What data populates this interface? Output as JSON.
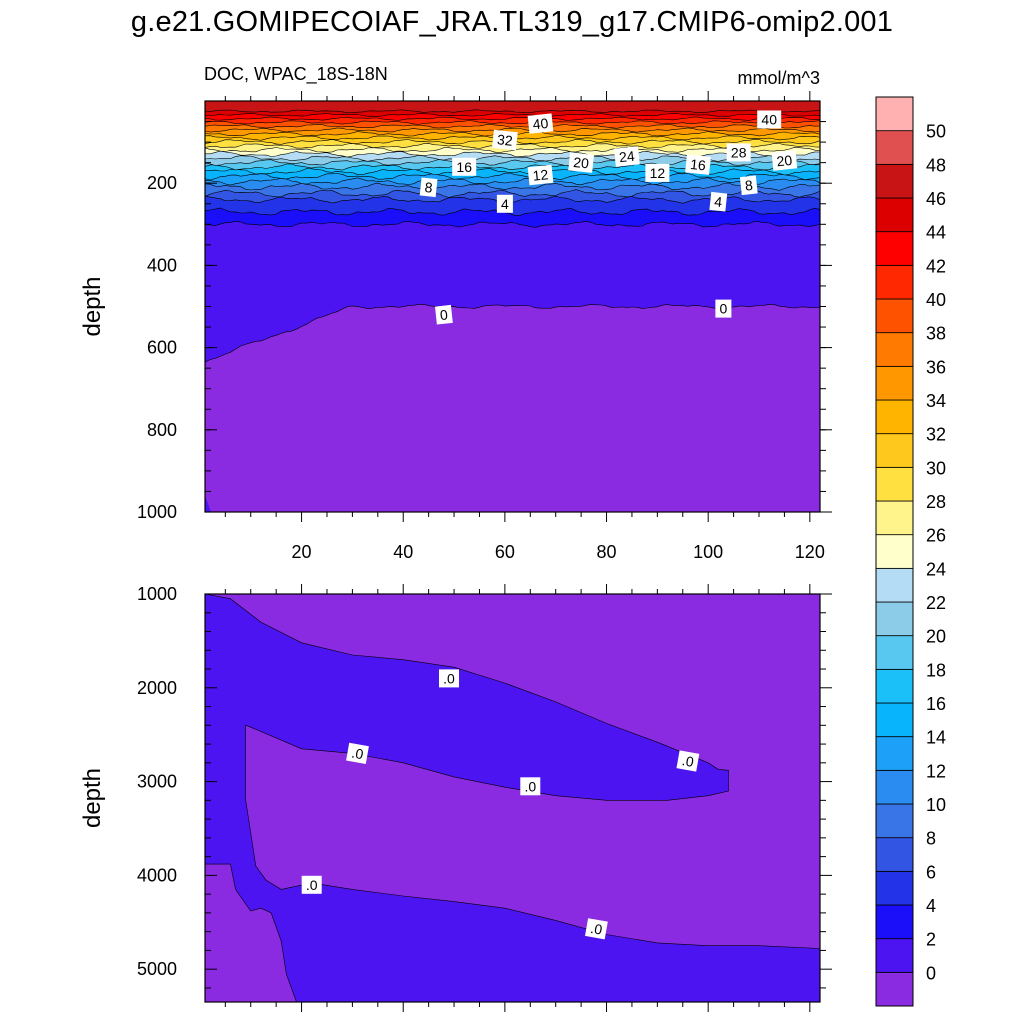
{
  "chart_data": {
    "type": "contour",
    "title": "g.e21.GOMIPECOIAF_JRA.TL319_g17.CMIP6-omip2.001",
    "variable": "DOC, WPAC_18S-18N",
    "units": "mmol/m^3",
    "colorbar": {
      "levels": [
        0,
        2,
        4,
        6,
        8,
        10,
        12,
        14,
        16,
        18,
        20,
        22,
        24,
        26,
        28,
        30,
        32,
        34,
        36,
        38,
        40,
        42,
        44,
        46,
        48,
        50
      ],
      "colors": [
        "#8a2be2",
        "#4b14f0",
        "#1a0ff8",
        "#2233e8",
        "#3355e4",
        "#3a75e8",
        "#2a8cf0",
        "#1ca0f8",
        "#08b4fc",
        "#1cc0f8",
        "#58c8f0",
        "#8ccce8",
        "#b4dcf4",
        "#ffffcc",
        "#fff48c",
        "#ffe040",
        "#ffc81c",
        "#ffb400",
        "#ff9800",
        "#ff7a00",
        "#ff5200",
        "#ff2800",
        "#ff0000",
        "#dc0000",
        "#c81414",
        "#e05050",
        "#ffb0b0"
      ]
    },
    "panels": [
      {
        "name": "upper",
        "xlim": [
          1,
          122
        ],
        "ylim": [
          0,
          1000
        ],
        "x_ticks": [
          20,
          40,
          60,
          80,
          100,
          120
        ],
        "y_ticks": [
          200,
          400,
          600,
          800,
          1000
        ],
        "ylabel": "depth",
        "contour_labels": [
          {
            "text": "40",
            "x": 67,
            "y": 55
          },
          {
            "text": "40",
            "x": 112,
            "y": 45
          },
          {
            "text": "32",
            "x": 60,
            "y": 95
          },
          {
            "text": "24",
            "x": 84,
            "y": 135
          },
          {
            "text": "28",
            "x": 106,
            "y": 125
          },
          {
            "text": "20",
            "x": 75,
            "y": 150
          },
          {
            "text": "20",
            "x": 115,
            "y": 145
          },
          {
            "text": "16",
            "x": 52,
            "y": 160
          },
          {
            "text": "16",
            "x": 98,
            "y": 155
          },
          {
            "text": "12",
            "x": 67,
            "y": 180
          },
          {
            "text": "12",
            "x": 90,
            "y": 175
          },
          {
            "text": "8",
            "x": 45,
            "y": 210
          },
          {
            "text": "8",
            "x": 108,
            "y": 205
          },
          {
            "text": "4",
            "x": 60,
            "y": 250
          },
          {
            "text": "4",
            "x": 102,
            "y": 245
          },
          {
            "text": "0",
            "x": 48,
            "y": 520
          },
          {
            "text": "0",
            "x": 103,
            "y": 505
          }
        ]
      },
      {
        "name": "lower",
        "xlim": [
          1,
          122
        ],
        "ylim": [
          1000,
          5350
        ],
        "y_ticks": [
          1000,
          2000,
          3000,
          4000,
          5000
        ],
        "ylabel": "depth",
        "contour_labels": [
          {
            "text": ".0",
            "x": 49,
            "y": 1900
          },
          {
            "text": ".0",
            "x": 31,
            "y": 2700
          },
          {
            "text": ".0",
            "x": 65,
            "y": 3050
          },
          {
            "text": ".0",
            "x": 96,
            "y": 2780
          },
          {
            "text": ".0",
            "x": 22,
            "y": 4100
          },
          {
            "text": ".0",
            "x": 78,
            "y": 4570
          }
        ]
      }
    ]
  }
}
